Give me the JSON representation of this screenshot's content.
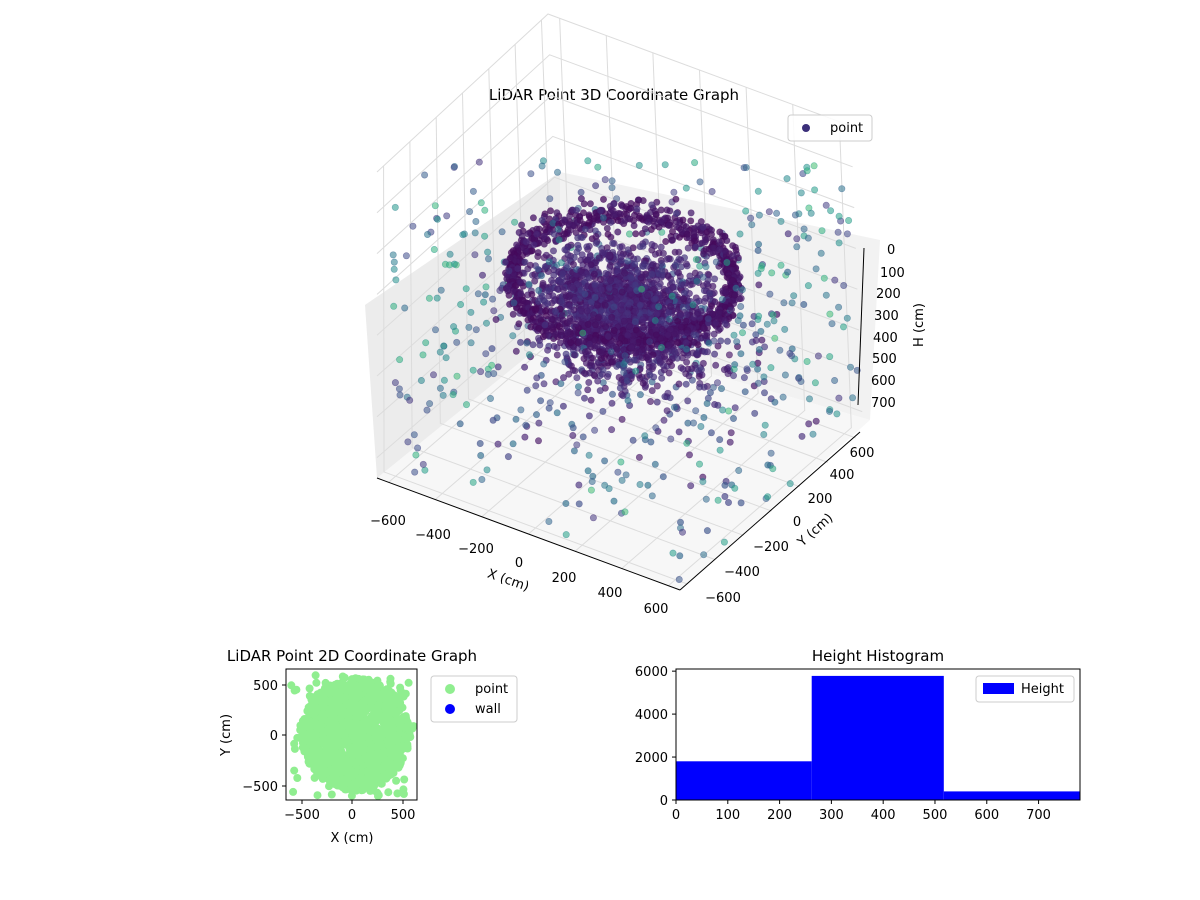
{
  "figure": {
    "colors": {
      "point_2d": "#90ee90",
      "wall": "#0000ff",
      "histogram": "#0000ff",
      "legend_point_3d": "#3b2f7a"
    }
  },
  "chart_data": [
    {
      "type": "scatter3d",
      "title": "LiDAR Point 3D Coordinate Graph",
      "xlabel": "X (cm)",
      "ylabel": "Y (cm)",
      "zlabel": "H (cm)",
      "xlim": [
        -650,
        650
      ],
      "ylim": [
        -650,
        650
      ],
      "zlim": [
        0,
        750
      ],
      "z_inverted": true,
      "x_ticks": [
        "−600",
        "−400",
        "−200",
        "0",
        "200",
        "400",
        "600"
      ],
      "y_ticks": [
        "−600",
        "−400",
        "−200",
        "0",
        "200",
        "400",
        "600"
      ],
      "z_ticks": [
        "0",
        "100",
        "200",
        "300",
        "400",
        "500",
        "600",
        "700"
      ],
      "colormap": "viridis",
      "legend": {
        "entries": [
          "point"
        ],
        "placement": "top-right"
      },
      "series": [
        {
          "name": "point",
          "description_points": [
            {
              "shape": "ring",
              "cx": 0,
              "cy": 50,
              "r": 420,
              "z": 300
            },
            {
              "shape": "dense-blob",
              "cx": 50,
              "cy": 0,
              "z_range": [
                250,
                450
              ]
            },
            {
              "shape": "scattered-walls",
              "z_range": [
                0,
                750
              ]
            }
          ]
        }
      ]
    },
    {
      "type": "scatter",
      "title": "LiDAR Point 2D Coordinate Graph",
      "xlabel": "X (cm)",
      "ylabel": "Y (cm)",
      "xlim": [
        -650,
        650
      ],
      "ylim": [
        -650,
        650
      ],
      "x_ticks": [
        "−500",
        "0",
        "500"
      ],
      "y_ticks": [
        "−500",
        "0",
        "500"
      ],
      "legend": {
        "entries": [
          "point",
          "wall"
        ],
        "placement": "outside-right"
      },
      "series": [
        {
          "name": "point",
          "region": {
            "x": [
              -600,
              620
            ],
            "y": [
              -620,
              620
            ]
          }
        },
        {
          "name": "wall",
          "values": []
        }
      ]
    },
    {
      "type": "bar",
      "title": "Height Histogram",
      "xlabel": "",
      "ylabel": "",
      "xlim": [
        0,
        780
      ],
      "ylim": [
        0,
        6100
      ],
      "x_ticks": [
        "0",
        "100",
        "200",
        "300",
        "400",
        "500",
        "600",
        "700"
      ],
      "y_ticks": [
        "0",
        "2000",
        "4000",
        "6000"
      ],
      "bins": [
        {
          "start": 0,
          "end": 262,
          "count": 1800
        },
        {
          "start": 262,
          "end": 517,
          "count": 5780
        },
        {
          "start": 517,
          "end": 780,
          "count": 400
        }
      ],
      "legend": {
        "entries": [
          "Height"
        ],
        "placement": "top-right"
      }
    }
  ]
}
